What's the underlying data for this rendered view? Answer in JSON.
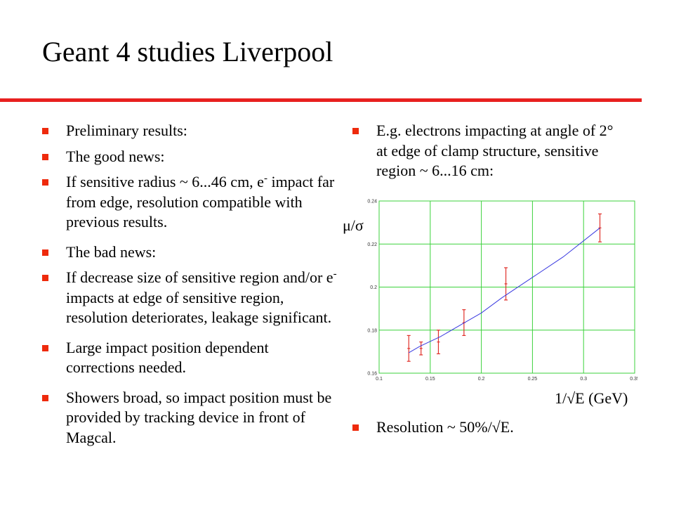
{
  "title": "Geant 4 studies Liverpool",
  "left_bullets": [
    {
      "text": "Preliminary results:"
    },
    {
      "text": "The good news:"
    },
    {
      "pre": "If sensitive radius ~ 6...46 cm, e",
      "sup": "-",
      "post": " impact far from edge, resolution compatible with previous results."
    },
    {
      "text": "The bad news:"
    },
    {
      "pre": "If decrease size of sensitive region and/or e",
      "sup": "-",
      "post": " impacts at edge of sensitive region, resolution deteriorates, leakage significant."
    },
    {
      "text": "Large impact position dependent corrections needed."
    },
    {
      "text": "Showers broad, so impact position must be provided by tracking device in front of Magcal."
    }
  ],
  "right_bullets": [
    {
      "text": "E.g. electrons impacting at angle of  2° at edge of clamp structure, sensitive region ~ 6...16 cm:"
    }
  ],
  "result_bullet": {
    "text": "Resolution ~ 50%/√E."
  },
  "chart_data": {
    "type": "scatter",
    "xlabel": "1/√E (GeV)",
    "ylabel": "μ/σ",
    "xlim": [
      0.1,
      0.35
    ],
    "ylim": [
      0.16,
      0.24
    ],
    "x_ticks": [
      "0.1",
      "0.15",
      "0.2",
      "0.25",
      "0.3",
      "0.35"
    ],
    "y_ticks": [
      "0.16",
      "0.18",
      "0.2",
      "0.22",
      "0.24"
    ],
    "grid": true,
    "series": [
      {
        "kind": "points_with_errors",
        "color": "#e0302a",
        "points": [
          {
            "x": 0.129,
            "y": 0.1715,
            "err": 0.006
          },
          {
            "x": 0.141,
            "y": 0.1715,
            "err": 0.003
          },
          {
            "x": 0.158,
            "y": 0.1745,
            "err": 0.0055
          },
          {
            "x": 0.183,
            "y": 0.1835,
            "err": 0.006
          },
          {
            "x": 0.224,
            "y": 0.2015,
            "err": 0.0075
          },
          {
            "x": 0.316,
            "y": 0.2275,
            "err": 0.0065
          }
        ]
      },
      {
        "kind": "fit_line",
        "color": "#3a3ae0",
        "x": [
          0.129,
          0.14,
          0.16,
          0.18,
          0.2,
          0.22,
          0.25,
          0.28,
          0.316
        ],
        "y": [
          0.1695,
          0.1725,
          0.177,
          0.1825,
          0.188,
          0.195,
          0.2045,
          0.214,
          0.2275
        ]
      }
    ]
  }
}
